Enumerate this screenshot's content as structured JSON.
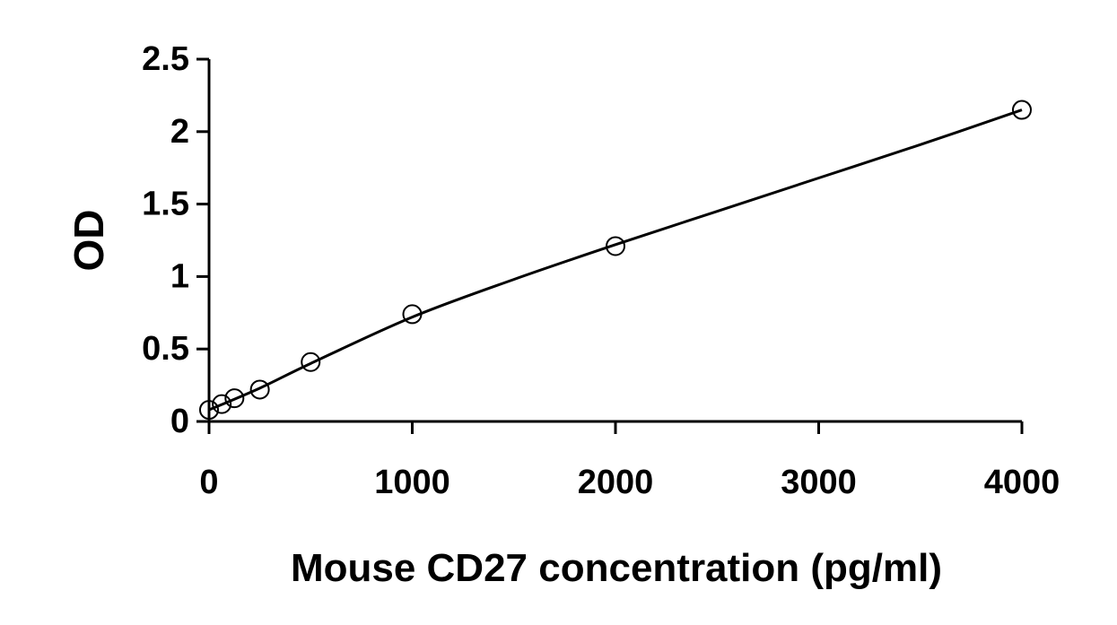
{
  "chart_data": {
    "type": "scatter",
    "title": "",
    "xlabel": "Mouse CD27 concentration (pg/ml)",
    "ylabel": "OD",
    "xlim": [
      0,
      4000
    ],
    "ylim": [
      0,
      2.5
    ],
    "x_ticks": [
      0,
      1000,
      2000,
      3000,
      4000
    ],
    "x_tick_labels": [
      "0",
      "1000",
      "2000",
      "3000",
      "4000"
    ],
    "y_ticks": [
      0,
      0.5,
      1,
      1.5,
      2,
      2.5
    ],
    "y_tick_labels": [
      "0",
      "0.5",
      "1",
      "1.5",
      "2",
      "2.5"
    ],
    "grid": false,
    "legend": "none",
    "series": [
      {
        "marker": "open-circle",
        "x": [
          0,
          62.5,
          125,
          250,
          500,
          1000,
          2000,
          4000
        ],
        "y": [
          0.08,
          0.12,
          0.16,
          0.22,
          0.41,
          0.74,
          1.21,
          2.15
        ]
      }
    ],
    "fit_curve": {
      "type": "smooth",
      "color": "#000000",
      "x": [
        0,
        250,
        500,
        1000,
        1500,
        2000,
        2500,
        3000,
        3500,
        4000
      ],
      "y": [
        0.08,
        0.23,
        0.4,
        0.72,
        0.98,
        1.22,
        1.45,
        1.68,
        1.91,
        2.15
      ]
    },
    "colors": {
      "axis": "#000000",
      "marker_stroke": "#000000",
      "marker_fill": "#ffffff"
    }
  }
}
